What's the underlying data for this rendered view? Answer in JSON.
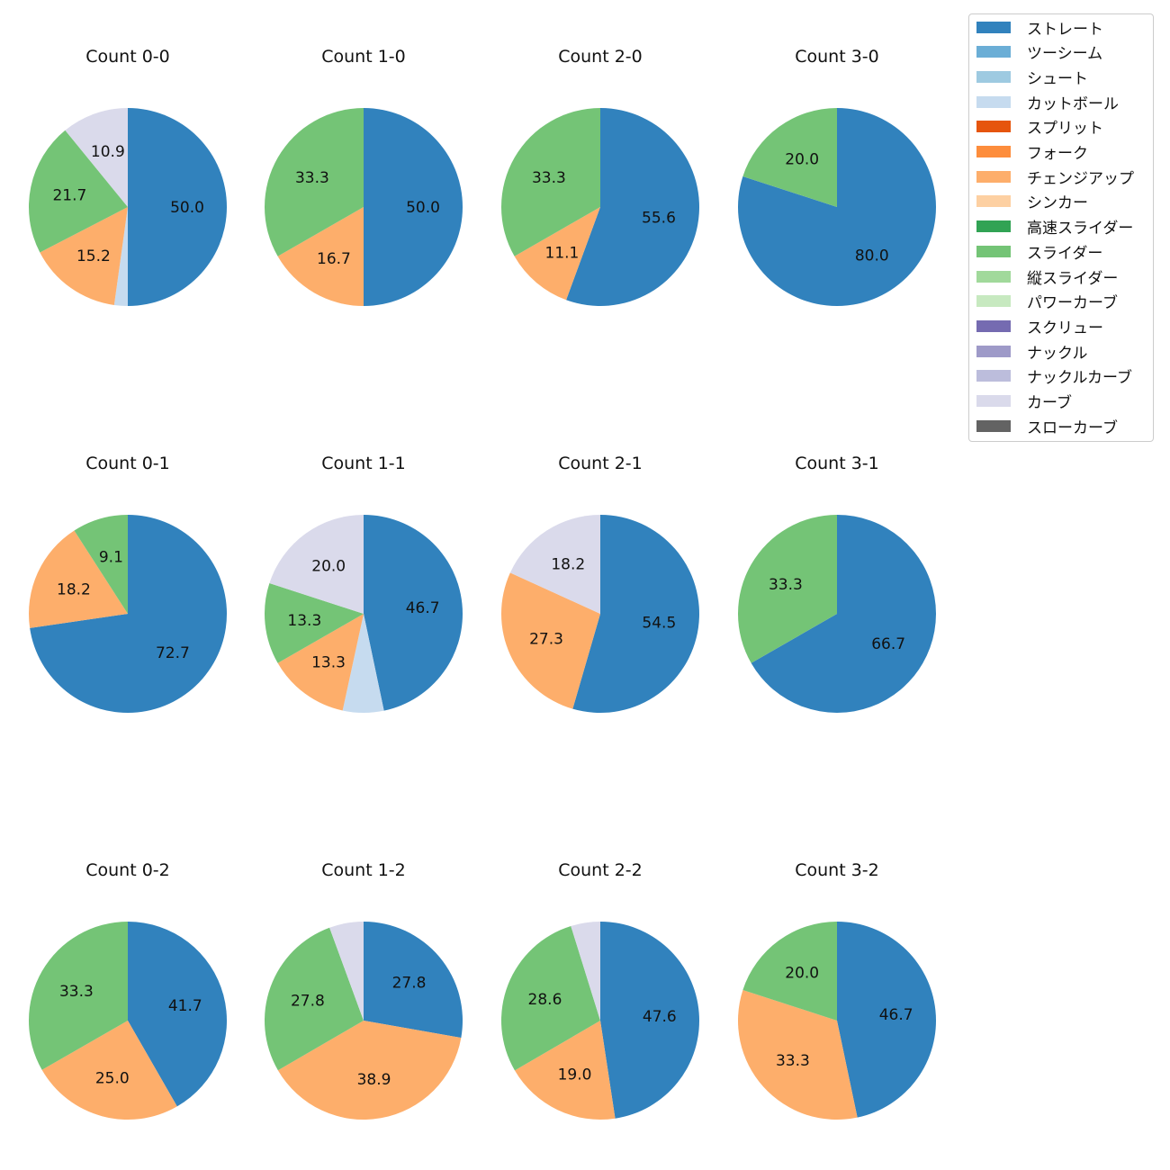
{
  "chart_data": {
    "type": "pie",
    "start_angle": "12 o'clock",
    "direction": "clockwise",
    "legend": {
      "placement": "top-right",
      "entries": [
        {
          "name": "ストレート",
          "color": "#3182bd"
        },
        {
          "name": "ツーシーム",
          "color": "#6baed6"
        },
        {
          "name": "シュート",
          "color": "#9ecae1"
        },
        {
          "name": "カットボール",
          "color": "#c6dbef"
        },
        {
          "name": "スプリット",
          "color": "#e6550d"
        },
        {
          "name": "フォーク",
          "color": "#fd8d3c"
        },
        {
          "name": "チェンジアップ",
          "color": "#fdae6b"
        },
        {
          "name": "シンカー",
          "color": "#fdd0a2"
        },
        {
          "name": "高速スライダー",
          "color": "#31a354"
        },
        {
          "name": "スライダー",
          "color": "#74c476"
        },
        {
          "name": "縦スライダー",
          "color": "#a1d99b"
        },
        {
          "name": "パワーカーブ",
          "color": "#c7e9c0"
        },
        {
          "name": "スクリュー",
          "color": "#756bb1"
        },
        {
          "name": "ナックル",
          "color": "#9e9ac8"
        },
        {
          "name": "ナックルカーブ",
          "color": "#bcbddc"
        },
        {
          "name": "カーブ",
          "color": "#dadaeb"
        },
        {
          "name": "スローカーブ",
          "color": "#636363"
        }
      ]
    },
    "charts": [
      {
        "title": "Count 0-0",
        "slices": [
          {
            "pitch": "ストレート",
            "value": 50.0,
            "label": "50.0"
          },
          {
            "pitch": "カットボール",
            "value": 2.2,
            "label": ""
          },
          {
            "pitch": "チェンジアップ",
            "value": 15.2,
            "label": "15.2"
          },
          {
            "pitch": "スライダー",
            "value": 21.7,
            "label": "21.7"
          },
          {
            "pitch": "カーブ",
            "value": 10.9,
            "label": "10.9"
          }
        ]
      },
      {
        "title": "Count 1-0",
        "slices": [
          {
            "pitch": "ストレート",
            "value": 50.0,
            "label": "50.0"
          },
          {
            "pitch": "チェンジアップ",
            "value": 16.7,
            "label": "16.7"
          },
          {
            "pitch": "スライダー",
            "value": 33.3,
            "label": "33.3"
          }
        ]
      },
      {
        "title": "Count 2-0",
        "slices": [
          {
            "pitch": "ストレート",
            "value": 55.6,
            "label": "55.6"
          },
          {
            "pitch": "チェンジアップ",
            "value": 11.1,
            "label": "11.1"
          },
          {
            "pitch": "スライダー",
            "value": 33.3,
            "label": "33.3"
          }
        ]
      },
      {
        "title": "Count 3-0",
        "slices": [
          {
            "pitch": "ストレート",
            "value": 80.0,
            "label": "80.0"
          },
          {
            "pitch": "スライダー",
            "value": 20.0,
            "label": "20.0"
          }
        ]
      },
      {
        "title": "Count 0-1",
        "slices": [
          {
            "pitch": "ストレート",
            "value": 72.7,
            "label": "72.7"
          },
          {
            "pitch": "チェンジアップ",
            "value": 18.2,
            "label": "18.2"
          },
          {
            "pitch": "スライダー",
            "value": 9.1,
            "label": "9.1"
          }
        ]
      },
      {
        "title": "Count 1-1",
        "slices": [
          {
            "pitch": "ストレート",
            "value": 46.7,
            "label": "46.7"
          },
          {
            "pitch": "カットボール",
            "value": 6.7,
            "label": ""
          },
          {
            "pitch": "チェンジアップ",
            "value": 13.3,
            "label": "13.3"
          },
          {
            "pitch": "スライダー",
            "value": 13.3,
            "label": "13.3"
          },
          {
            "pitch": "カーブ",
            "value": 20.0,
            "label": "20.0"
          }
        ]
      },
      {
        "title": "Count 2-1",
        "slices": [
          {
            "pitch": "ストレート",
            "value": 54.5,
            "label": "54.5"
          },
          {
            "pitch": "チェンジアップ",
            "value": 27.3,
            "label": "27.3"
          },
          {
            "pitch": "カーブ",
            "value": 18.2,
            "label": "18.2"
          }
        ]
      },
      {
        "title": "Count 3-1",
        "slices": [
          {
            "pitch": "ストレート",
            "value": 66.7,
            "label": "66.7"
          },
          {
            "pitch": "スライダー",
            "value": 33.3,
            "label": "33.3"
          }
        ]
      },
      {
        "title": "Count 0-2",
        "slices": [
          {
            "pitch": "ストレート",
            "value": 41.7,
            "label": "41.7"
          },
          {
            "pitch": "チェンジアップ",
            "value": 25.0,
            "label": "25.0"
          },
          {
            "pitch": "スライダー",
            "value": 33.3,
            "label": "33.3"
          }
        ]
      },
      {
        "title": "Count 1-2",
        "slices": [
          {
            "pitch": "ストレート",
            "value": 27.8,
            "label": "27.8"
          },
          {
            "pitch": "チェンジアップ",
            "value": 38.9,
            "label": "38.9"
          },
          {
            "pitch": "スライダー",
            "value": 27.8,
            "label": "27.8"
          },
          {
            "pitch": "カーブ",
            "value": 5.6,
            "label": ""
          }
        ]
      },
      {
        "title": "Count 2-2",
        "slices": [
          {
            "pitch": "ストレート",
            "value": 47.6,
            "label": "47.6"
          },
          {
            "pitch": "チェンジアップ",
            "value": 19.0,
            "label": "19.0"
          },
          {
            "pitch": "スライダー",
            "value": 28.6,
            "label": "28.6"
          },
          {
            "pitch": "カーブ",
            "value": 4.8,
            "label": ""
          }
        ]
      },
      {
        "title": "Count 3-2",
        "slices": [
          {
            "pitch": "ストレート",
            "value": 46.7,
            "label": "46.7"
          },
          {
            "pitch": "チェンジアップ",
            "value": 33.3,
            "label": "33.3"
          },
          {
            "pitch": "スライダー",
            "value": 20.0,
            "label": "20.0"
          }
        ]
      }
    ]
  }
}
